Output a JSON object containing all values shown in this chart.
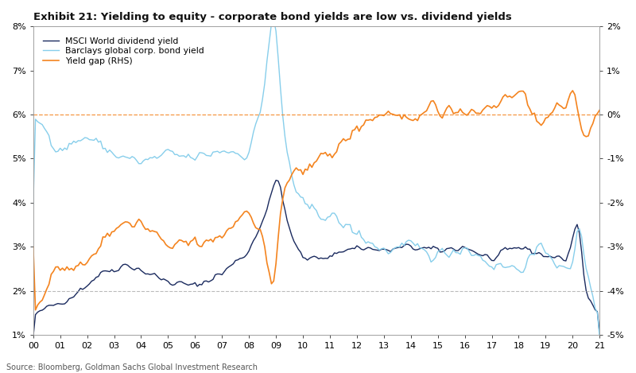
{
  "title": "Exhibit 21: Yielding to equity - corporate bond yields are low vs. dividend yields",
  "source_text": "Source: Bloomberg, Goldman Sachs Global Investment Research",
  "legend_labels": [
    "MSCI World dividend yield",
    "Barclays global corp. bond yield",
    "Yield gap (RHS)"
  ],
  "line_colors": [
    "#1a2a5e",
    "#87ceeb",
    "#f4841f"
  ],
  "ylim_left": [
    0.01,
    0.08
  ],
  "ylim_right": [
    -0.05,
    0.02
  ],
  "yticks_left": [
    0.01,
    0.02,
    0.03,
    0.04,
    0.05,
    0.06,
    0.07,
    0.08
  ],
  "ytick_labels_left": [
    "1%",
    "2%",
    "3%",
    "4%",
    "5%",
    "6%",
    "7%",
    "8%"
  ],
  "yticks_right": [
    -0.05,
    -0.04,
    -0.03,
    -0.02,
    -0.01,
    0.0,
    0.01,
    0.02
  ],
  "ytick_labels_right": [
    "-5%",
    "-4%",
    "-3%",
    "-2%",
    "-1%",
    "0%",
    "1%",
    "2%"
  ],
  "hline_orange_rhs": 0.0,
  "hline_grey_rhs": -0.04,
  "background_color": "#ffffff"
}
